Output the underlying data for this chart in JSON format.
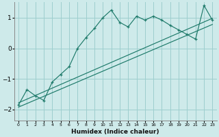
{
  "xlabel": "Humidex (Indice chaleur)",
  "bg_color": "#ceeaea",
  "line_color": "#1e7a6a",
  "grid_color": "#9dcece",
  "xlim": [
    -0.5,
    23.5
  ],
  "ylim": [
    -2.35,
    1.5
  ],
  "xticks": [
    0,
    1,
    2,
    3,
    4,
    5,
    6,
    7,
    8,
    9,
    10,
    11,
    12,
    13,
    14,
    15,
    16,
    17,
    18,
    19,
    20,
    21,
    22,
    23
  ],
  "yticks": [
    -2,
    -1,
    0,
    1
  ],
  "series1_x": [
    0,
    1,
    2,
    3,
    4,
    5,
    6,
    7,
    8,
    9,
    10,
    11,
    12,
    13,
    14,
    15,
    16,
    17,
    18,
    19,
    20,
    21,
    22,
    23
  ],
  "series1_y": [
    -1.85,
    -1.35,
    -1.55,
    -1.7,
    -1.1,
    -0.85,
    -0.6,
    0.0,
    0.35,
    0.65,
    1.0,
    1.25,
    0.85,
    0.7,
    1.05,
    0.92,
    1.05,
    0.92,
    0.75,
    0.6,
    0.45,
    0.3,
    1.4,
    0.92
  ],
  "series2_x": [
    0,
    23
  ],
  "series2_y": [
    -1.78,
    0.98
  ],
  "series3_x": [
    0,
    23
  ],
  "series3_y": [
    -1.92,
    0.78
  ]
}
